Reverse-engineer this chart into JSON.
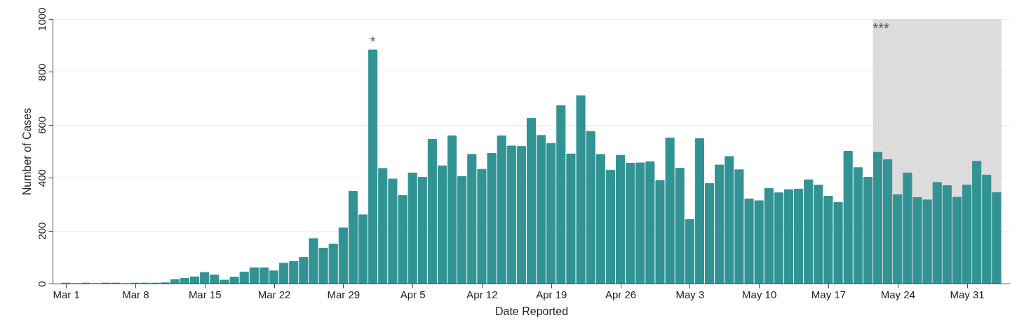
{
  "chart_data": {
    "type": "bar",
    "xlabel": "Date Reported",
    "ylabel": "Number of Cases",
    "x": [
      "--03-01",
      "--03-02",
      "--03-03",
      "--03-04",
      "--03-05",
      "--03-06",
      "--03-07",
      "--03-08",
      "--03-09",
      "--03-10",
      "--03-11",
      "--03-12",
      "--03-13",
      "--03-14",
      "--03-15",
      "--03-16",
      "--03-17",
      "--03-18",
      "--03-19",
      "--03-20",
      "--03-21",
      "--03-22",
      "--03-23",
      "--03-24",
      "--03-25",
      "--03-26",
      "--03-27",
      "--03-28",
      "--03-29",
      "--03-30",
      "--03-31",
      "--04-01",
      "--04-02",
      "--04-03",
      "--04-04",
      "--04-05",
      "--04-06",
      "--04-07",
      "--04-08",
      "--04-09",
      "--04-10",
      "--04-11",
      "--04-12",
      "--04-13",
      "--04-14",
      "--04-15",
      "--04-16",
      "--04-17",
      "--04-18",
      "--04-19",
      "--04-20",
      "--04-21",
      "--04-22",
      "--04-23",
      "--04-24",
      "--04-25",
      "--04-26",
      "--04-27",
      "--04-28",
      "--04-29",
      "--04-30",
      "--05-01",
      "--05-02",
      "--05-03",
      "--05-04",
      "--05-05",
      "--05-06",
      "--05-07",
      "--05-08",
      "--05-09",
      "--05-10",
      "--05-11",
      "--05-12",
      "--05-13",
      "--05-14",
      "--05-15",
      "--05-16",
      "--05-17",
      "--05-18",
      "--05-19",
      "--05-20",
      "--05-21",
      "--05-22",
      "--05-23",
      "--05-24",
      "--05-25",
      "--05-26",
      "--05-27",
      "--05-28",
      "--05-29",
      "--05-30",
      "--05-31",
      "--06-01",
      "--06-02",
      "--06-03"
    ],
    "series": [
      {
        "color": "#319393",
        "values": [
          2,
          0,
          2,
          0,
          2,
          2,
          0,
          2,
          2,
          2,
          3,
          15,
          20,
          25,
          42,
          32,
          13,
          24,
          43,
          59,
          59,
          48,
          77,
          84,
          99,
          170,
          134,
          149,
          210,
          349,
          260,
          883,
          435,
          395,
          333,
          418,
          402,
          545,
          445,
          558,
          405,
          488,
          432,
          492,
          558,
          520,
          518,
          625,
          560,
          530,
          672,
          490,
          710,
          575,
          488,
          428,
          485,
          455,
          456,
          460,
          390,
          550,
          436,
          242,
          548,
          378,
          448,
          480,
          430,
          320,
          313,
          360,
          343,
          355,
          357,
          392,
          372,
          330,
          307,
          500,
          438,
          402,
          496,
          468,
          336,
          418,
          325,
          316,
          382,
          370,
          326,
          372,
          462,
          410,
          344
        ]
      }
    ],
    "xlim": [
      "--02-29",
      "--06-04"
    ],
    "xticks": [
      {
        "value": "--03-01",
        "label": "Mar 1"
      },
      {
        "value": "--03-08",
        "label": "Mar 8"
      },
      {
        "value": "--03-15",
        "label": "Mar 15"
      },
      {
        "value": "--03-22",
        "label": "Mar 22"
      },
      {
        "value": "--03-29",
        "label": "Mar 29"
      },
      {
        "value": "--04-05",
        "label": "Apr 5"
      },
      {
        "value": "--04-12",
        "label": "Apr 12"
      },
      {
        "value": "--04-19",
        "label": "Apr 19"
      },
      {
        "value": "--04-26",
        "label": "Apr 26"
      },
      {
        "value": "--05-03",
        "label": "May 3"
      },
      {
        "value": "--05-10",
        "label": "May 10"
      },
      {
        "value": "--05-17",
        "label": "May 17"
      },
      {
        "value": "--05-24",
        "label": "May 24"
      },
      {
        "value": "--05-31",
        "label": "May 31"
      }
    ],
    "ylim": [
      0,
      1000
    ],
    "yticks": [
      0,
      200,
      400,
      600,
      800,
      1000
    ],
    "grid": "y",
    "bands": [
      {
        "axis": "x",
        "from": "--05-21T12:00",
        "to": "--06-03T12:00",
        "label": "***",
        "color": "#dcdcdc"
      }
    ],
    "annotations": [
      {
        "text": "*",
        "x": "--04-01",
        "y": 883
      }
    ]
  }
}
